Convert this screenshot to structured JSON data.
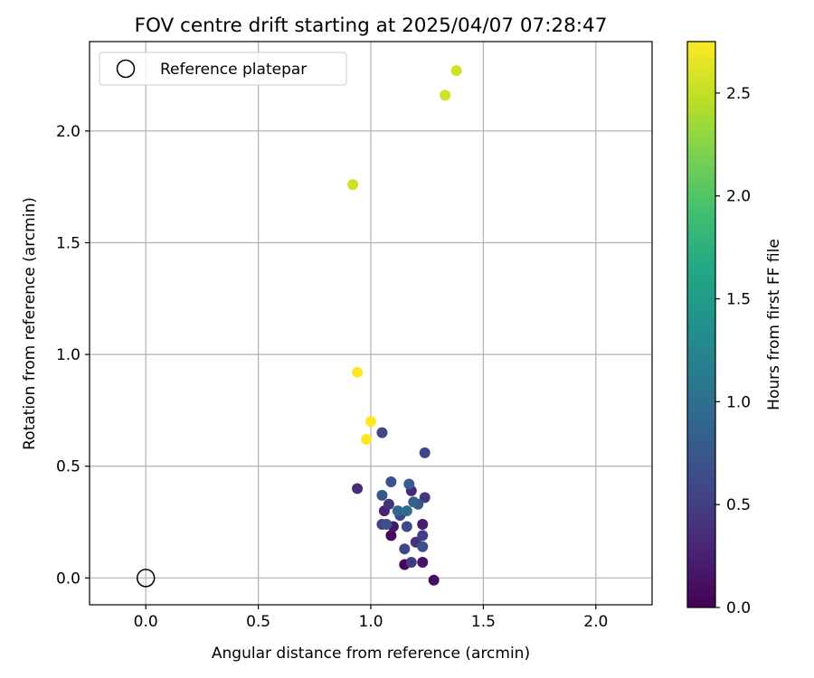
{
  "chart_data": {
    "type": "scatter",
    "title": "FOV centre drift starting at 2025/04/07 07:28:47",
    "xlabel": "Angular distance from reference (arcmin)",
    "ylabel": "Rotation from reference (arcmin)",
    "xlim": [
      -0.25,
      2.25
    ],
    "ylim": [
      -0.12,
      2.4
    ],
    "xticks": [
      0.0,
      0.5,
      1.0,
      1.5,
      2.0
    ],
    "xtick_labels": [
      "0.0",
      "0.5",
      "1.0",
      "1.5",
      "2.0"
    ],
    "yticks": [
      0.0,
      0.5,
      1.0,
      1.5,
      2.0
    ],
    "ytick_labels": [
      "0.0",
      "0.5",
      "1.0",
      "1.5",
      "2.0"
    ],
    "grid": true,
    "legend": {
      "position": "top-left",
      "entries": [
        "Reference platepar"
      ]
    },
    "reference_point": {
      "x": 0.0,
      "y": 0.0,
      "label": "Reference platepar"
    },
    "colorbar": {
      "label": "Hours from first FF file",
      "colormap": "viridis",
      "range": [
        0.0,
        2.75
      ],
      "ticks": [
        0.0,
        0.5,
        1.0,
        1.5,
        2.0,
        2.5
      ],
      "tick_labels": [
        "0.0",
        "0.5",
        "1.0",
        "1.5",
        "2.0",
        "2.5"
      ]
    },
    "points": [
      {
        "x": 1.15,
        "y": 0.06,
        "hours": 0.02
      },
      {
        "x": 1.09,
        "y": 0.19,
        "hours": 0.05
      },
      {
        "x": 1.28,
        "y": -0.01,
        "hours": 0.1
      },
      {
        "x": 1.23,
        "y": 0.07,
        "hours": 0.14
      },
      {
        "x": 1.1,
        "y": 0.23,
        "hours": 0.18
      },
      {
        "x": 1.23,
        "y": 0.24,
        "hours": 0.22
      },
      {
        "x": 1.06,
        "y": 0.3,
        "hours": 0.26
      },
      {
        "x": 1.18,
        "y": 0.39,
        "hours": 0.3
      },
      {
        "x": 0.94,
        "y": 0.4,
        "hours": 0.35
      },
      {
        "x": 1.08,
        "y": 0.33,
        "hours": 0.4
      },
      {
        "x": 1.2,
        "y": 0.16,
        "hours": 0.4
      },
      {
        "x": 1.24,
        "y": 0.36,
        "hours": 0.44
      },
      {
        "x": 1.18,
        "y": 0.07,
        "hours": 0.47
      },
      {
        "x": 1.23,
        "y": 0.19,
        "hours": 0.5
      },
      {
        "x": 1.05,
        "y": 0.24,
        "hours": 0.52
      },
      {
        "x": 1.15,
        "y": 0.13,
        "hours": 0.55
      },
      {
        "x": 1.24,
        "y": 0.56,
        "hours": 0.58
      },
      {
        "x": 1.05,
        "y": 0.65,
        "hours": 0.58
      },
      {
        "x": 1.13,
        "y": 0.28,
        "hours": 0.6
      },
      {
        "x": 1.16,
        "y": 0.23,
        "hours": 0.62
      },
      {
        "x": 1.07,
        "y": 0.24,
        "hours": 0.65
      },
      {
        "x": 1.23,
        "y": 0.14,
        "hours": 0.68
      },
      {
        "x": 1.09,
        "y": 0.43,
        "hours": 0.7
      },
      {
        "x": 1.21,
        "y": 0.33,
        "hours": 0.72
      },
      {
        "x": 1.05,
        "y": 0.37,
        "hours": 0.75
      },
      {
        "x": 1.17,
        "y": 0.42,
        "hours": 0.8
      },
      {
        "x": 1.19,
        "y": 0.34,
        "hours": 0.85
      },
      {
        "x": 1.12,
        "y": 0.3,
        "hours": 0.9
      },
      {
        "x": 1.16,
        "y": 0.3,
        "hours": 0.98
      },
      {
        "x": 1.0,
        "y": 0.7,
        "hours": 2.75
      },
      {
        "x": 0.98,
        "y": 0.62,
        "hours": 2.75
      },
      {
        "x": 0.94,
        "y": 0.92,
        "hours": 2.75
      },
      {
        "x": 0.92,
        "y": 1.76,
        "hours": 2.55
      },
      {
        "x": 1.33,
        "y": 2.16,
        "hours": 2.55
      },
      {
        "x": 1.38,
        "y": 2.27,
        "hours": 2.55
      }
    ]
  }
}
